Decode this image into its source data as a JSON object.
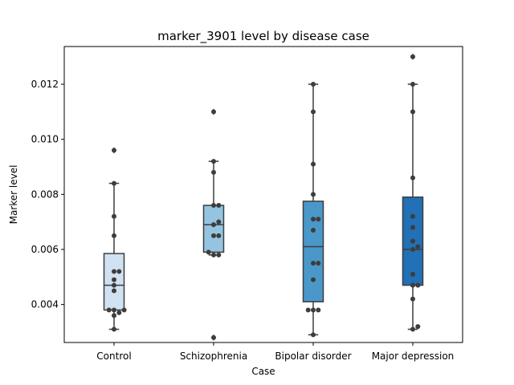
{
  "chart_data": {
    "type": "box",
    "title": "marker_3901 level by disease case",
    "xlabel": "Case",
    "ylabel": "Marker level",
    "ylim": [
      0.00262,
      0.01337
    ],
    "yticks": [
      0.004,
      0.006,
      0.008,
      0.01,
      0.012
    ],
    "ytick_labels": [
      "0.004",
      "0.006",
      "0.008",
      "0.010",
      "0.012"
    ],
    "grid": false,
    "categories": [
      "Control",
      "Schizophrenia",
      "Bipolar disorder",
      "Major depression"
    ],
    "colors": [
      "#d0e1f2",
      "#94c4df",
      "#4a98c9",
      "#2270b5"
    ],
    "boxes": [
      {
        "whisker_low": 0.0031,
        "q1": 0.0038,
        "median": 0.0047,
        "q3": 0.00585,
        "whisker_high": 0.0084,
        "outliers": [
          0.0096
        ]
      },
      {
        "whisker_low": 0.0058,
        "q1": 0.0059,
        "median": 0.0069,
        "q3": 0.0076,
        "whisker_high": 0.0092,
        "outliers": [
          0.0028,
          0.011
        ]
      },
      {
        "whisker_low": 0.0029,
        "q1": 0.0041,
        "median": 0.0061,
        "q3": 0.00775,
        "whisker_high": 0.012,
        "outliers": []
      },
      {
        "whisker_low": 0.0031,
        "q1": 0.0047,
        "median": 0.006,
        "q3": 0.0079,
        "whisker_high": 0.012,
        "outliers": [
          0.013
        ]
      }
    ],
    "points": [
      [
        0.0031,
        0.0036,
        0.0037,
        0.0038,
        0.0038,
        0.0038,
        0.0045,
        0.0047,
        0.0049,
        0.0052,
        0.0052,
        0.0065,
        0.0072,
        0.0084,
        0.0096
      ],
      [
        0.0028,
        0.0058,
        0.0058,
        0.0059,
        0.0065,
        0.0065,
        0.0069,
        0.007,
        0.0076,
        0.0076,
        0.0088,
        0.0092,
        0.011
      ],
      [
        0.0029,
        0.0038,
        0.0038,
        0.0038,
        0.0049,
        0.0055,
        0.0055,
        0.0067,
        0.0071,
        0.0071,
        0.008,
        0.0091,
        0.011,
        0.012
      ],
      [
        0.0031,
        0.0032,
        0.0042,
        0.0047,
        0.0047,
        0.0051,
        0.006,
        0.0061,
        0.0063,
        0.0068,
        0.0072,
        0.0086,
        0.011,
        0.012,
        0.013
      ]
    ]
  }
}
